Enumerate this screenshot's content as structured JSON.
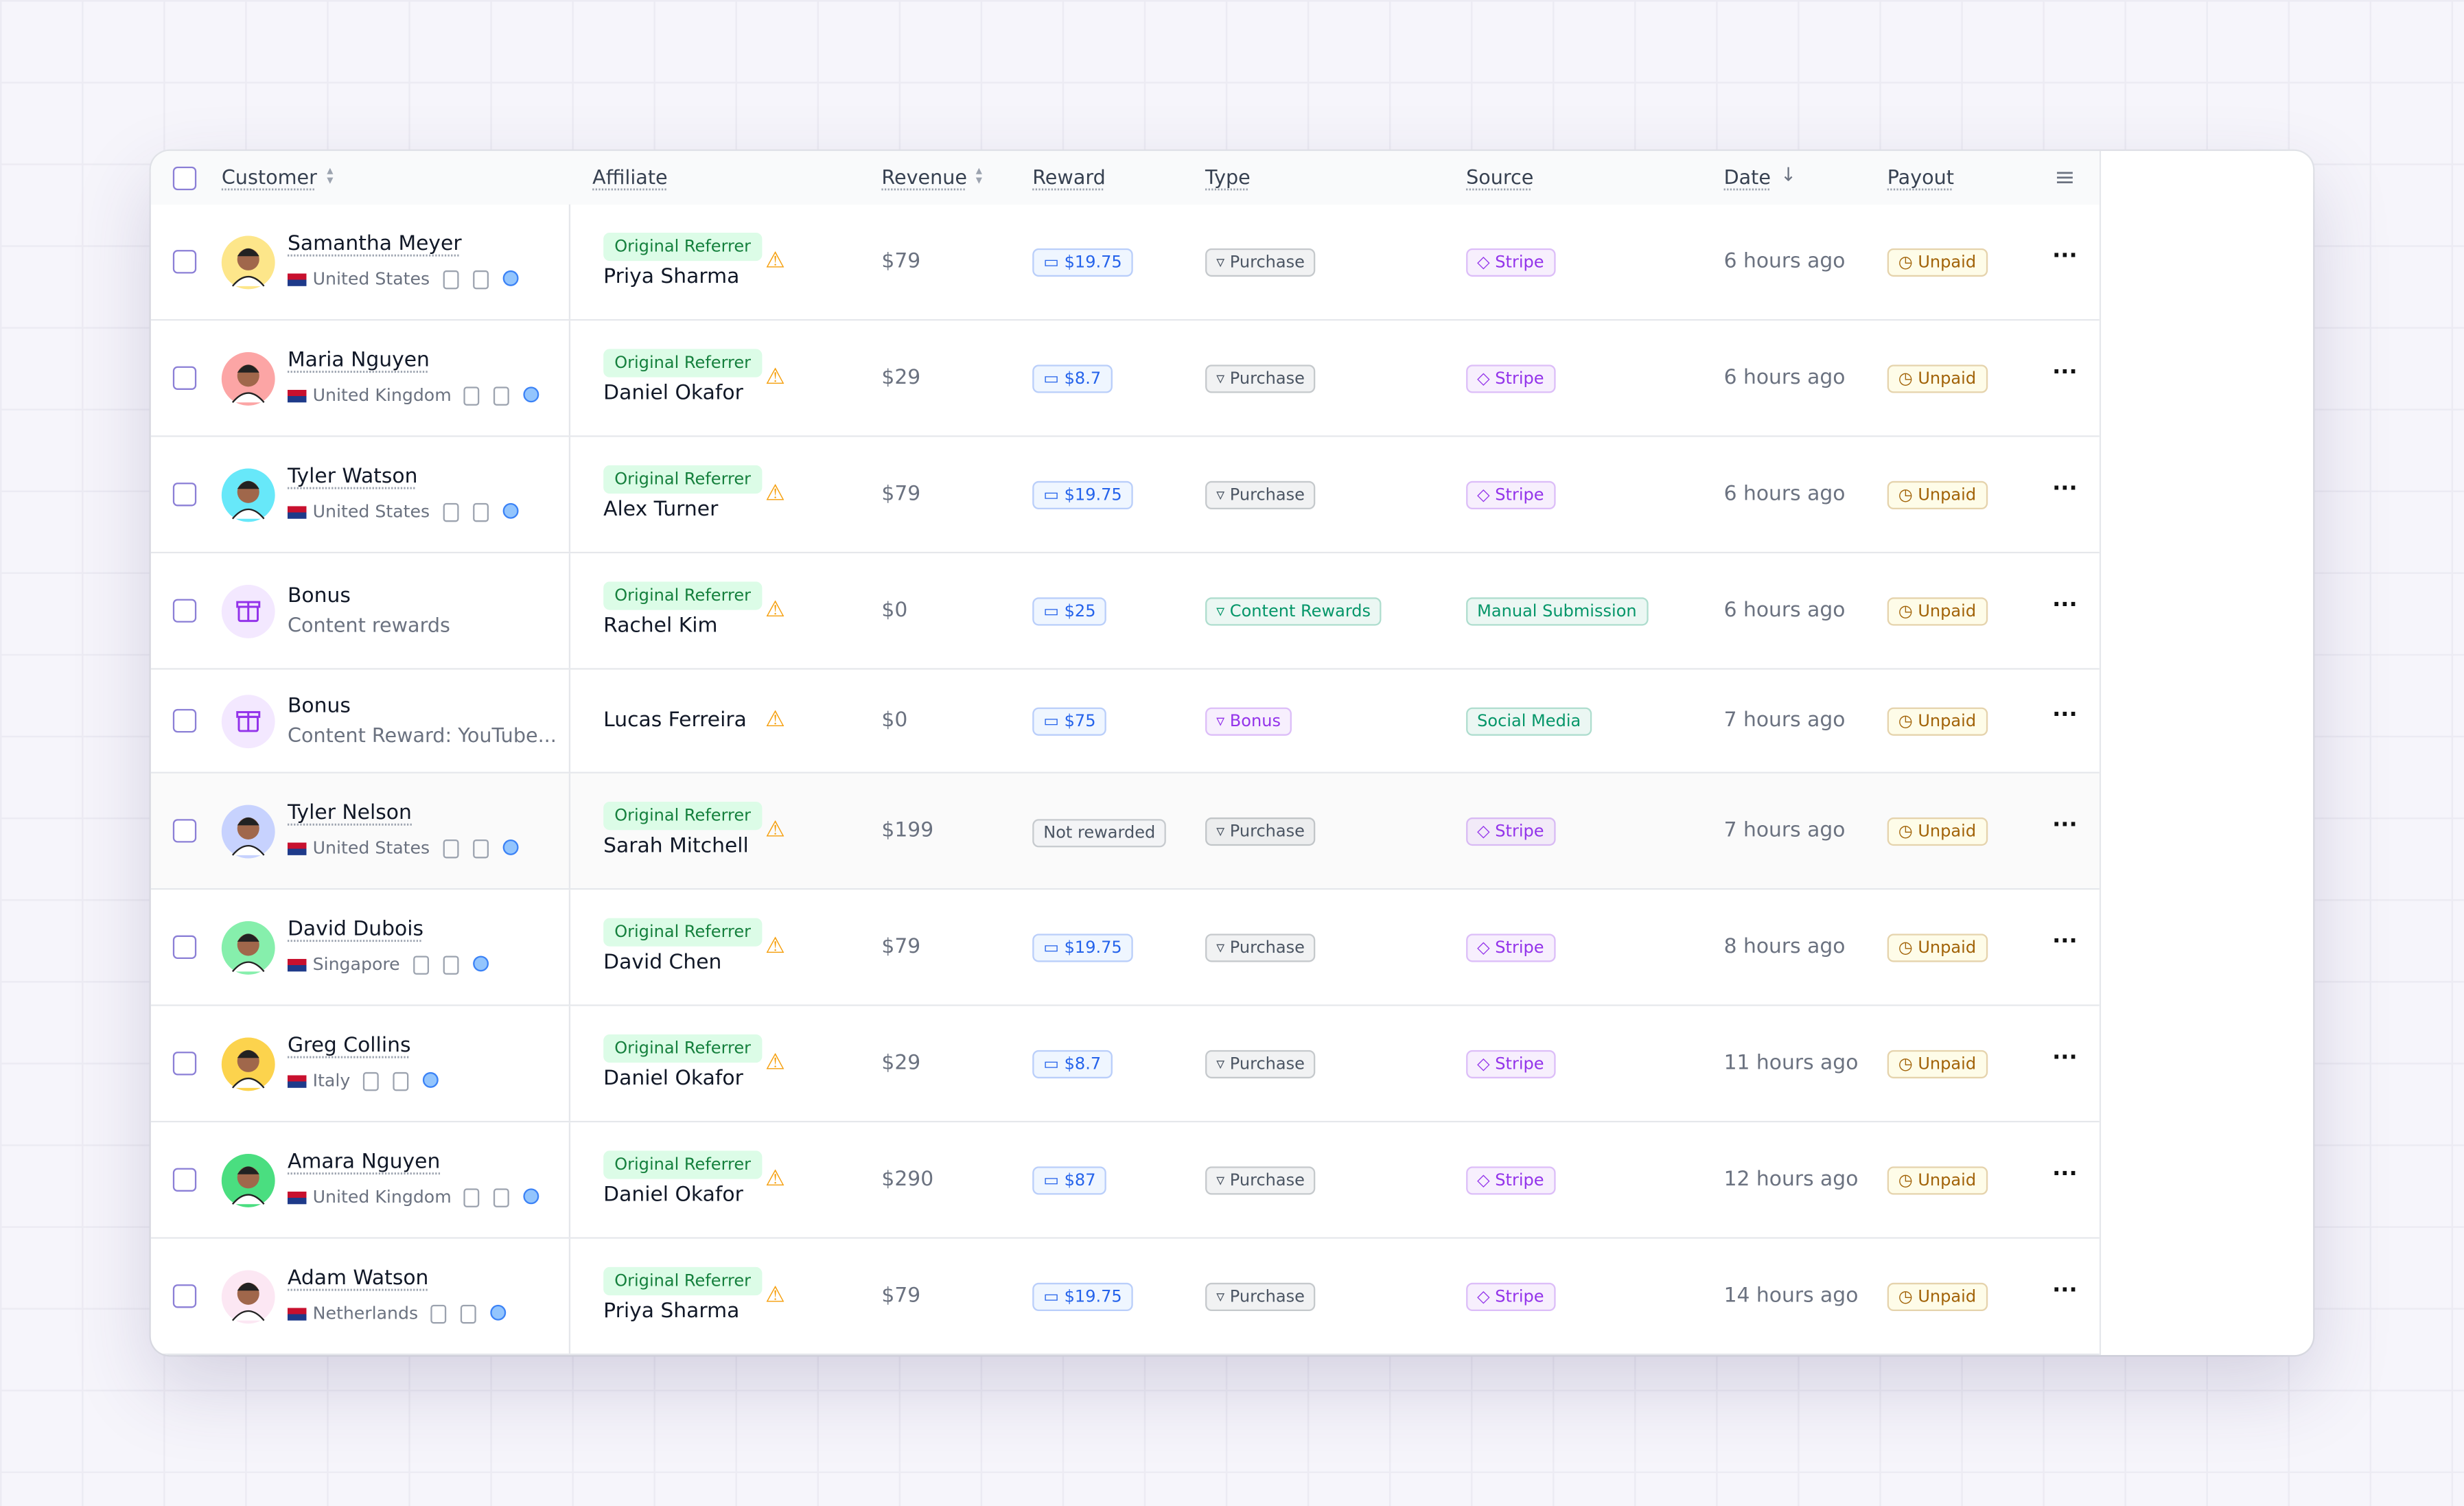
{
  "header": {
    "columns": [
      "Customer",
      "Affiliate",
      "Revenue",
      "Reward",
      "Type",
      "Source",
      "Date",
      "Payout"
    ]
  },
  "rows": [
    {
      "customer": {
        "name": "Samantha Meyer",
        "country": "United States",
        "avatar": "#fde68a"
      },
      "affiliate": {
        "tag": "Original Referrer",
        "name": "Priya Sharma"
      },
      "revenue": "$79",
      "reward": "$19.75",
      "type": {
        "text": "Purchase",
        "color": "#4b5563"
      },
      "source": {
        "text": "Stripe",
        "color": "#9333ea"
      },
      "date": "6 hours ago",
      "payout": "Unpaid"
    },
    {
      "customer": {
        "name": "Maria Nguyen",
        "country": "United Kingdom",
        "avatar": "#fca5a5"
      },
      "affiliate": {
        "tag": "Original Referrer",
        "name": "Daniel Okafor"
      },
      "revenue": "$29",
      "reward": "$8.7",
      "type": {
        "text": "Purchase",
        "color": "#4b5563"
      },
      "source": {
        "text": "Stripe",
        "color": "#9333ea"
      },
      "date": "6 hours ago",
      "payout": "Unpaid"
    },
    {
      "customer": {
        "name": "Tyler Watson",
        "country": "United States",
        "avatar": "#67e8f9"
      },
      "affiliate": {
        "tag": "Original Referrer",
        "name": "Alex Turner"
      },
      "revenue": "$79",
      "reward": "$19.75",
      "type": {
        "text": "Purchase",
        "color": "#4b5563"
      },
      "source": {
        "text": "Stripe",
        "color": "#9333ea"
      },
      "date": "6 hours ago",
      "payout": "Unpaid"
    },
    {
      "customer": {
        "name": "Bonus",
        "detail": "Content rewards",
        "avatar": "#f3e8ff"
      },
      "affiliate": {
        "tag": "Original Referrer",
        "name": "Rachel Kim"
      },
      "revenue": "$0",
      "reward": "$25",
      "type": {
        "text": "Content Rewards",
        "color": "#059669"
      },
      "source": {
        "text": "Manual Submission",
        "color": "#059669"
      },
      "date": "6 hours ago",
      "payout": "Unpaid"
    },
    {
      "customer": {
        "name": "Bonus",
        "detail": "Content Reward: YouTube...",
        "avatar": "#f3e8ff"
      },
      "affiliate": {
        "name": "Lucas Ferreira"
      },
      "revenue": "$0",
      "reward": "$75",
      "type": {
        "text": "Bonus",
        "color": "#9333ea"
      },
      "source": {
        "text": "Social Media",
        "color": "#059669"
      },
      "date": "7 hours ago",
      "payout": "Unpaid"
    },
    {
      "customer": {
        "name": "Tyler Nelson",
        "country": "United States",
        "avatar": "#c7d2fe"
      },
      "affiliate": {
        "tag": "Original Referrer",
        "name": "Sarah Mitchell"
      },
      "revenue": "$199",
      "reward_status": "Not rewarded",
      "type": {
        "text": "Purchase",
        "color": "#4b5563"
      },
      "source": {
        "text": "Stripe",
        "color": "#9333ea"
      },
      "date": "7 hours ago",
      "payout": "Unpaid",
      "highlighted": true
    },
    {
      "customer": {
        "name": "David Dubois",
        "country": "Singapore",
        "avatar": "#86efac"
      },
      "affiliate": {
        "tag": "Original Referrer",
        "name": "David Chen"
      },
      "revenue": "$79",
      "reward": "$19.75",
      "type": {
        "text": "Purchase",
        "color": "#4b5563"
      },
      "source": {
        "text": "Stripe",
        "color": "#9333ea"
      },
      "date": "8 hours ago",
      "payout": "Unpaid"
    },
    {
      "customer": {
        "name": "Greg Collins",
        "country": "Italy",
        "avatar": "#fcd34d"
      },
      "affiliate": {
        "tag": "Original Referrer",
        "name": "Daniel Okafor"
      },
      "revenue": "$29",
      "reward": "$8.7",
      "type": {
        "text": "Purchase",
        "color": "#4b5563"
      },
      "source": {
        "text": "Stripe",
        "color": "#9333ea"
      },
      "date": "11 hours ago",
      "payout": "Unpaid"
    },
    {
      "customer": {
        "name": "Amara Nguyen",
        "country": "United Kingdom",
        "avatar": "#4ade80"
      },
      "affiliate": {
        "tag": "Original Referrer",
        "name": "Daniel Okafor"
      },
      "revenue": "$290",
      "reward": "$87",
      "type": {
        "text": "Purchase",
        "color": "#4b5563"
      },
      "source": {
        "text": "Stripe",
        "color": "#9333ea"
      },
      "date": "12 hours ago",
      "payout": "Unpaid"
    },
    {
      "customer": {
        "name": "Adam Watson",
        "country": "Netherlands",
        "avatar": "#fce7f3"
      },
      "affiliate": {
        "tag": "Original Referrer",
        "name": "Priya Sharma"
      },
      "revenue": "$79",
      "reward": "$19.75",
      "type": {
        "text": "Purchase",
        "color": "#4b5563"
      },
      "source": {
        "text": "Stripe",
        "color": "#9333ea"
      },
      "date": "14 hours ago",
      "payout": "Unpaid"
    }
  ]
}
